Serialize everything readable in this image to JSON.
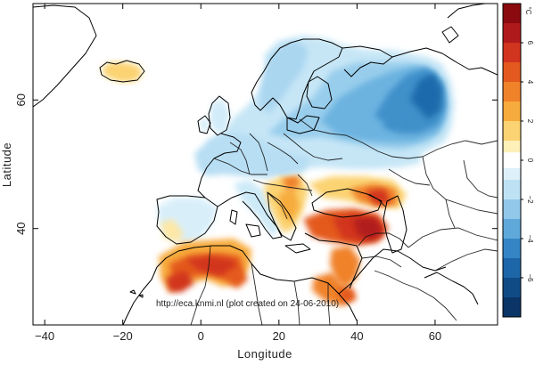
{
  "map": {
    "x_axis_label": "Longitude",
    "y_axis_label": "Latitude",
    "x_ticks": [
      {
        "value": -40,
        "label": "−40"
      },
      {
        "value": -20,
        "label": "−20"
      },
      {
        "value": 0,
        "label": "0"
      },
      {
        "value": 20,
        "label": "20"
      },
      {
        "value": 40,
        "label": "40"
      },
      {
        "value": 60,
        "label": "60"
      }
    ],
    "y_ticks": [
      {
        "value": 40,
        "label": "40"
      },
      {
        "value": 60,
        "label": "60"
      }
    ],
    "x_range": [
      -43,
      76
    ],
    "y_range": [
      25,
      75
    ],
    "annotation": "http://eca.knmi.nl (plot created on 24-06-2010)"
  },
  "colorbar": {
    "unit": "°C",
    "range": [
      -8,
      8
    ],
    "labels": [
      {
        "value": 6,
        "label": "6"
      },
      {
        "value": 4,
        "label": "4"
      },
      {
        "value": 2,
        "label": "2"
      },
      {
        "value": 0,
        "label": "0"
      },
      {
        "value": -2,
        "label": "−2"
      },
      {
        "value": -4,
        "label": "−4"
      },
      {
        "value": -6,
        "label": "−6"
      }
    ],
    "colors": [
      {
        "from": 7,
        "to": 8,
        "color": "#8a0a10"
      },
      {
        "from": 6,
        "to": 7,
        "color": "#b11a1d"
      },
      {
        "from": 5,
        "to": 6,
        "color": "#d1341f"
      },
      {
        "from": 4,
        "to": 5,
        "color": "#e45a1e"
      },
      {
        "from": 3,
        "to": 4,
        "color": "#f0822a"
      },
      {
        "from": 2,
        "to": 3,
        "color": "#f7ab3c"
      },
      {
        "from": 1,
        "to": 2,
        "color": "#fbd372"
      },
      {
        "from": 0.4,
        "to": 1,
        "color": "#fdf0b8"
      },
      {
        "from": -0.4,
        "to": 0.4,
        "color": "#ffffff"
      },
      {
        "from": -1,
        "to": -0.4,
        "color": "#def0fa"
      },
      {
        "from": -2,
        "to": -1,
        "color": "#bee2f4"
      },
      {
        "from": -3,
        "to": -2,
        "color": "#92c9ea"
      },
      {
        "from": -4,
        "to": -3,
        "color": "#5fa8da"
      },
      {
        "from": -5,
        "to": -4,
        "color": "#3585c4"
      },
      {
        "from": -6,
        "to": -5,
        "color": "#1d66a8"
      },
      {
        "from": -7,
        "to": -6,
        "color": "#104b86"
      },
      {
        "from": -8,
        "to": -7,
        "color": "#0a3566"
      }
    ]
  }
}
